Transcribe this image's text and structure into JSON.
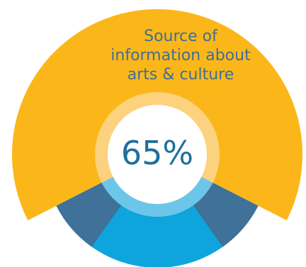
{
  "chart_data": {
    "type": "pie",
    "title_lines": [
      "Source of",
      "information about",
      "arts & culture"
    ],
    "center_label": "65%",
    "slices": [
      {
        "value": 65,
        "color": "#fbb719"
      },
      {
        "value": 35,
        "color": "#0ea5dc"
      }
    ],
    "accent_color": "#3f7199",
    "inner_ring_color": "#fdd27e",
    "inner_highlight_color": "#6cc6ea"
  }
}
